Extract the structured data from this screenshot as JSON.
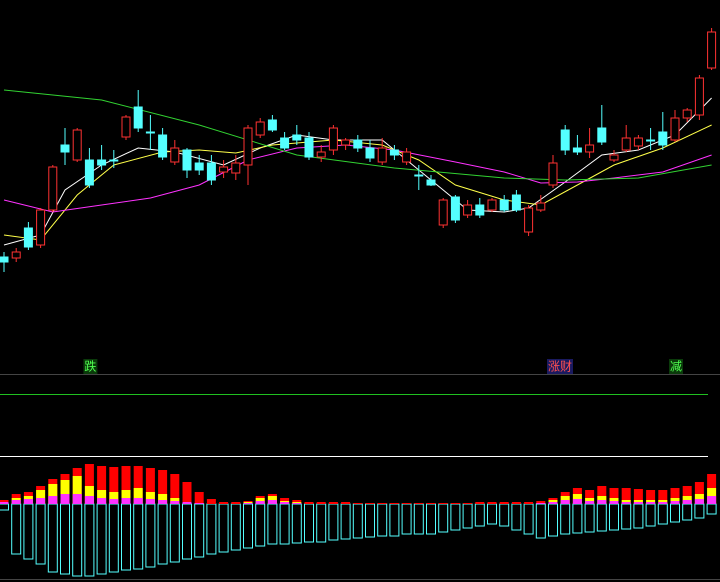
{
  "chart_data": {
    "type": "candlestick",
    "ylim": [
      0,
      350
    ],
    "up_color": "#ff3232",
    "down_color": "#54ffff",
    "open": [
      93,
      92,
      122,
      105,
      140,
      205,
      190,
      190,
      190,
      190,
      213,
      243,
      218,
      215,
      188,
      200,
      187,
      187,
      178,
      177,
      185,
      215,
      230,
      212,
      215,
      212,
      193,
      200,
      205,
      210,
      202,
      188,
      200,
      188,
      175,
      170,
      125,
      153,
      135,
      145,
      140,
      150,
      155,
      118,
      140,
      165,
      220,
      202,
      198,
      222,
      190,
      200,
      204,
      210,
      218,
      210,
      232,
      235,
      282
    ],
    "high": [
      98,
      102,
      128,
      142,
      185,
      222,
      222,
      202,
      205,
      200,
      235,
      260,
      235,
      222,
      210,
      202,
      195,
      195,
      190,
      195,
      225,
      232,
      235,
      218,
      225,
      218,
      205,
      225,
      212,
      215,
      210,
      212,
      205,
      202,
      185,
      175,
      152,
      155,
      150,
      152,
      152,
      155,
      160,
      145,
      155,
      195,
      225,
      215,
      222,
      245,
      200,
      225,
      215,
      222,
      238,
      240,
      242,
      275,
      322
    ],
    "low": [
      78,
      88,
      100,
      102,
      138,
      185,
      188,
      162,
      180,
      182,
      210,
      218,
      200,
      190,
      185,
      172,
      175,
      165,
      172,
      170,
      165,
      212,
      218,
      200,
      205,
      190,
      188,
      195,
      200,
      198,
      188,
      185,
      190,
      185,
      160,
      164,
      122,
      127,
      132,
      132,
      138,
      138,
      138,
      114,
      138,
      162,
      195,
      195,
      192,
      205,
      188,
      198,
      200,
      200,
      200,
      208,
      228,
      230,
      280
    ],
    "close": [
      88,
      98,
      103,
      140,
      183,
      198,
      220,
      165,
      185,
      189,
      233,
      222,
      217,
      193,
      202,
      180,
      180,
      170,
      183,
      187,
      222,
      228,
      220,
      202,
      210,
      193,
      198,
      222,
      210,
      202,
      192,
      202,
      195,
      198,
      174,
      165,
      150,
      130,
      145,
      135,
      150,
      140,
      140,
      142,
      147,
      187,
      200,
      198,
      205,
      208,
      195,
      212,
      212,
      209,
      205,
      232,
      240,
      272,
      318
    ],
    "lines": [
      {
        "color": "#ffffff",
        "x": [
          0,
          3,
          5,
          8,
          11,
          14,
          18,
          21,
          24,
          27,
          31,
          33,
          36,
          38,
          41,
          43,
          46,
          49,
          52,
          55,
          58
        ],
        "values": [
          105,
          115,
          160,
          185,
          202,
          198,
          185,
          202,
          215,
          210,
          210,
          190,
          160,
          140,
          138,
          142,
          168,
          195,
          200,
          215,
          252
        ]
      },
      {
        "color": "#ffff4a",
        "x": [
          0,
          3,
          6,
          9,
          13,
          16,
          19,
          22,
          27,
          31,
          34,
          37,
          41,
          44,
          47,
          50,
          54,
          58
        ],
        "values": [
          115,
          110,
          155,
          185,
          198,
          200,
          197,
          205,
          210,
          205,
          190,
          165,
          150,
          145,
          165,
          185,
          202,
          225
        ]
      },
      {
        "color": "#ff32ff",
        "x": [
          0,
          4,
          8,
          12,
          16,
          20,
          24,
          28,
          32,
          37,
          41,
          44,
          47,
          50,
          54,
          58
        ],
        "values": [
          150,
          138,
          145,
          152,
          165,
          190,
          202,
          205,
          200,
          188,
          178,
          167,
          168,
          172,
          178,
          195
        ]
      },
      {
        "color": "#32d232",
        "x": [
          0,
          8,
          16,
          24,
          32,
          41,
          46,
          52,
          58
        ],
        "values": [
          260,
          250,
          225,
          195,
          182,
          172,
          170,
          172,
          185
        ]
      }
    ],
    "annotations": [
      {
        "text": "跌",
        "x": 7
      },
      {
        "text": "涨财",
        "x": 45
      },
      {
        "text": "减",
        "x": 55
      }
    ],
    "indicator": {
      "ylim": [
        -80,
        60
      ],
      "series": [
        {
          "color": "#54ffff",
          "values": [
            -6,
            -50,
            -55,
            -60,
            -68,
            -70,
            -72,
            -72,
            -70,
            -68,
            -66,
            -65,
            -63,
            -60,
            -58,
            -55,
            -53,
            -50,
            -48,
            -46,
            -44,
            -42,
            -40,
            -40,
            -39,
            -38,
            -38,
            -36,
            -35,
            -34,
            -33,
            -32,
            -32,
            -30,
            -30,
            -30,
            -28,
            -26,
            -24,
            -22,
            -20,
            -22,
            -26,
            -30,
            -34,
            -32,
            -30,
            -29,
            -28,
            -27,
            -26,
            -25,
            -24,
            -22,
            -20,
            -18,
            -16,
            -14,
            -10
          ]
        },
        {
          "color": "#ff0000",
          "values": [
            4,
            10,
            12,
            18,
            25,
            30,
            36,
            40,
            38,
            37,
            38,
            38,
            36,
            34,
            30,
            22,
            12,
            5,
            2,
            2,
            3,
            8,
            10,
            6,
            4,
            2,
            2,
            2,
            2,
            1,
            1,
            1,
            1,
            1,
            1,
            1,
            1,
            1,
            1,
            2,
            2,
            2,
            2,
            2,
            3,
            6,
            12,
            16,
            14,
            18,
            16,
            16,
            15,
            14,
            14,
            16,
            18,
            22,
            30
          ]
        },
        {
          "color": "#ffff00",
          "values": [
            2,
            6,
            8,
            14,
            20,
            24,
            28,
            18,
            14,
            12,
            14,
            16,
            12,
            10,
            6,
            2,
            1,
            0,
            0,
            0,
            2,
            6,
            8,
            3,
            2,
            0,
            0,
            0,
            0,
            0,
            0,
            0,
            0,
            0,
            0,
            0,
            0,
            0,
            0,
            0,
            0,
            0,
            0,
            0,
            1,
            4,
            8,
            10,
            6,
            8,
            6,
            4,
            4,
            4,
            4,
            6,
            8,
            10,
            16
          ]
        },
        {
          "color": "#ff32ff",
          "values": [
            2,
            4,
            5,
            6,
            8,
            10,
            10,
            8,
            6,
            5,
            6,
            6,
            5,
            4,
            3,
            2,
            1,
            0,
            0,
            0,
            1,
            3,
            4,
            2,
            1,
            0,
            0,
            0,
            0,
            0,
            0,
            0,
            0,
            0,
            0,
            0,
            0,
            0,
            0,
            0,
            0,
            0,
            0,
            0,
            1,
            2,
            4,
            5,
            3,
            4,
            3,
            2,
            2,
            2,
            2,
            3,
            4,
            5,
            8
          ]
        }
      ]
    }
  }
}
